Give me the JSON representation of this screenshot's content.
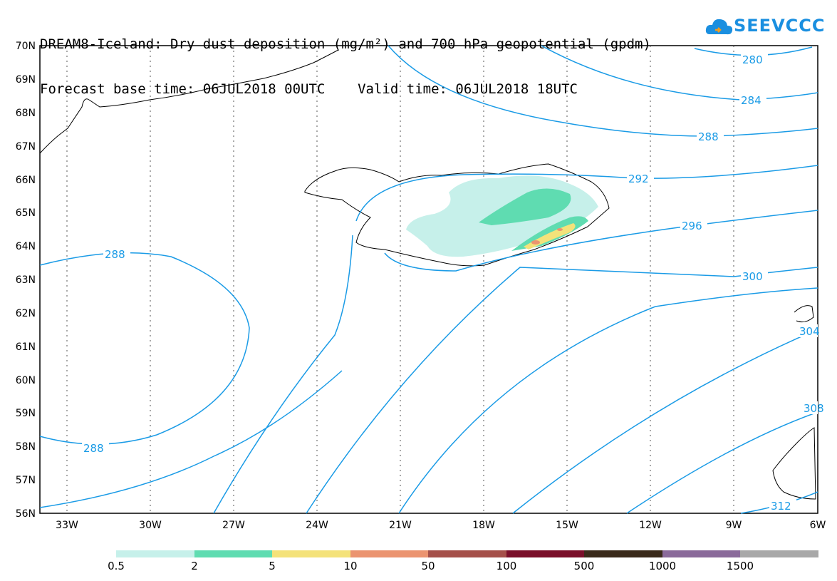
{
  "title": {
    "line1": "DREAM8-Iceland: Dry dust deposition (mg/m²) and 700 hPa geopotential (gpdm)",
    "line2": "Forecast base time: 06JUL2018 00UTC    Valid time: 06JUL2018 18UTC"
  },
  "logo": {
    "text": "SEEVCCC",
    "icon": "cloud-icon",
    "color": "#1a8fe0"
  },
  "map": {
    "lat_labels": [
      "70N",
      "69N",
      "68N",
      "67N",
      "66N",
      "65N",
      "64N",
      "63N",
      "62N",
      "61N",
      "60N",
      "59N",
      "58N",
      "57N",
      "56N"
    ],
    "lon_labels": [
      "33W",
      "30W",
      "27W",
      "24W",
      "21W",
      "18W",
      "15W",
      "12W",
      "9W",
      "6W"
    ],
    "contour_labels": [
      "280",
      "284",
      "288",
      "292",
      "296",
      "300",
      "304",
      "308",
      "312",
      "288",
      "288"
    ],
    "contour_color": "#1a9be6"
  },
  "legend": {
    "labels": [
      "0.5",
      "2",
      "5",
      "10",
      "50",
      "100",
      "500",
      "1000",
      "1500"
    ],
    "colors": [
      "#c6f0ea",
      "#5fdcb1",
      "#f4e27a",
      "#eb9470",
      "#a5504a",
      "#7a0f2a",
      "#3a2a1a",
      "#8a6a9a",
      "#a8a8a8"
    ]
  }
}
